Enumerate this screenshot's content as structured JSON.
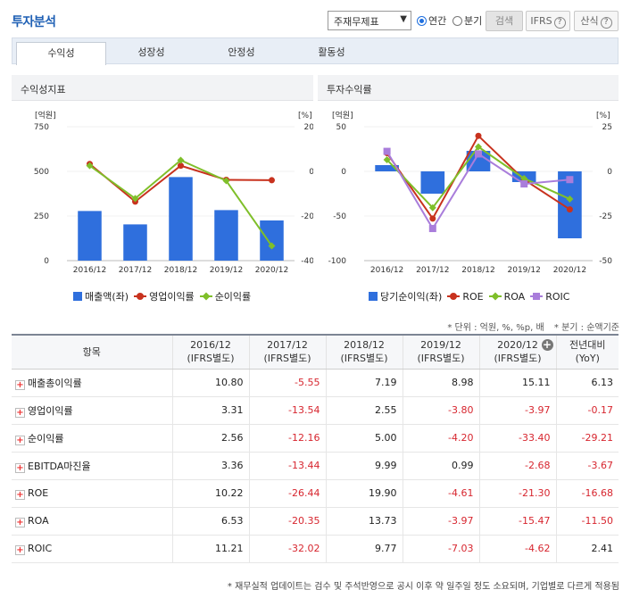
{
  "header": {
    "title": "투자분석",
    "report_select": "주재무제표",
    "period_options": [
      {
        "label": "연간",
        "selected": true
      },
      {
        "label": "분기",
        "selected": false
      }
    ],
    "search_button": "검색",
    "ifrs_button": "IFRS",
    "formula_button": "산식",
    "help_glyph": "?"
  },
  "tabs": [
    {
      "label": "수익성",
      "active": true
    },
    {
      "label": "성장성",
      "active": false
    },
    {
      "label": "안정성",
      "active": false
    },
    {
      "label": "활동성",
      "active": false
    }
  ],
  "colors": {
    "bar": "#2f6fdd",
    "red": "#c8321e",
    "green": "#7fbf2a",
    "purple": "#a97ddb"
  },
  "left_panel": {
    "title": "수익성지표"
  },
  "right_panel": {
    "title": "투자수익률"
  },
  "chart_data": [
    {
      "type": "bar+line",
      "title": "수익성지표",
      "categories": [
        "2016/12",
        "2017/12",
        "2018/12",
        "2019/12",
        "2020/12"
      ],
      "left_axis": {
        "unit": "[억원]",
        "ylim": [
          0,
          750
        ],
        "ticks": [
          "750",
          "500",
          "250",
          "0"
        ]
      },
      "right_axis": {
        "unit": "[%]",
        "ylim": [
          -40,
          20
        ],
        "ticks": [
          "20",
          "0",
          "-20",
          "-40"
        ]
      },
      "series": [
        {
          "name": "매출액(좌)",
          "kind": "bar",
          "axis": "left",
          "color": "#2f6fdd",
          "values": [
            278,
            203,
            468,
            283,
            225
          ]
        },
        {
          "name": "영업이익률",
          "kind": "line",
          "axis": "right",
          "marker": "circle",
          "color": "#c8321e",
          "values": [
            3.31,
            -13.54,
            2.55,
            -3.8,
            -3.97
          ]
        },
        {
          "name": "순이익률",
          "kind": "line",
          "axis": "right",
          "marker": "diamond",
          "color": "#7fbf2a",
          "values": [
            2.56,
            -12.16,
            5.0,
            -4.2,
            -33.4
          ]
        }
      ]
    },
    {
      "type": "bar+line",
      "title": "투자수익률",
      "categories": [
        "2016/12",
        "2017/12",
        "2018/12",
        "2019/12",
        "2020/12"
      ],
      "left_axis": {
        "unit": "[억원]",
        "ylim": [
          -100,
          50
        ],
        "ticks": [
          "50",
          "0",
          "-50",
          "-100"
        ]
      },
      "right_axis": {
        "unit": "[%]",
        "ylim": [
          -50,
          25
        ],
        "ticks": [
          "25",
          "0",
          "-25",
          "-50"
        ]
      },
      "series": [
        {
          "name": "당기순이익(좌)",
          "kind": "bar",
          "axis": "left",
          "color": "#2f6fdd",
          "values": [
            7,
            -25,
            23,
            -12,
            -75
          ]
        },
        {
          "name": "ROE",
          "kind": "line",
          "axis": "right",
          "marker": "circle",
          "color": "#c8321e",
          "values": [
            10.22,
            -26.44,
            19.9,
            -4.61,
            -21.3
          ]
        },
        {
          "name": "ROA",
          "kind": "line",
          "axis": "right",
          "marker": "diamond",
          "color": "#7fbf2a",
          "values": [
            6.53,
            -20.35,
            13.73,
            -3.97,
            -15.47
          ]
        },
        {
          "name": "ROIC",
          "kind": "line",
          "axis": "right",
          "marker": "square",
          "color": "#a97ddb",
          "values": [
            11.21,
            -32.02,
            9.77,
            -7.03,
            -4.62
          ]
        }
      ]
    }
  ],
  "unit_note": "* 단위 : 억원, %, %p, 배",
  "quarter_note": "* 분기 : 순액기준",
  "table": {
    "item_header": "항목",
    "columns": [
      {
        "year": "2016/12",
        "basis": "(IFRS별도)"
      },
      {
        "year": "2017/12",
        "basis": "(IFRS별도)"
      },
      {
        "year": "2018/12",
        "basis": "(IFRS별도)"
      },
      {
        "year": "2019/12",
        "basis": "(IFRS별도)"
      },
      {
        "year": "2020/12",
        "basis": "(IFRS별도)"
      }
    ],
    "yoy_header_1": "전년대비",
    "yoy_header_2": "(YoY)",
    "rows": [
      {
        "label": "매출총이익률",
        "values": [
          "10.80",
          "-5.55",
          "7.19",
          "8.98",
          "15.11",
          "6.13"
        ]
      },
      {
        "label": "영업이익률",
        "values": [
          "3.31",
          "-13.54",
          "2.55",
          "-3.80",
          "-3.97",
          "-0.17"
        ]
      },
      {
        "label": "순이익률",
        "values": [
          "2.56",
          "-12.16",
          "5.00",
          "-4.20",
          "-33.40",
          "-29.21"
        ]
      },
      {
        "label": "EBITDA마진율",
        "values": [
          "3.36",
          "-13.44",
          "9.99",
          "0.99",
          "-2.68",
          "-3.67"
        ]
      },
      {
        "label": "ROE",
        "values": [
          "10.22",
          "-26.44",
          "19.90",
          "-4.61",
          "-21.30",
          "-16.68"
        ]
      },
      {
        "label": "ROA",
        "values": [
          "6.53",
          "-20.35",
          "13.73",
          "-3.97",
          "-15.47",
          "-11.50"
        ]
      },
      {
        "label": "ROIC",
        "values": [
          "11.21",
          "-32.02",
          "9.77",
          "-7.03",
          "-4.62",
          "2.41"
        ]
      }
    ]
  },
  "footnote": "* 재무실적 업데이트는 검수 및 주석반영으로 공시 이후 약 일주일 정도 소요되며, 기업별로 다르게 적용됨"
}
